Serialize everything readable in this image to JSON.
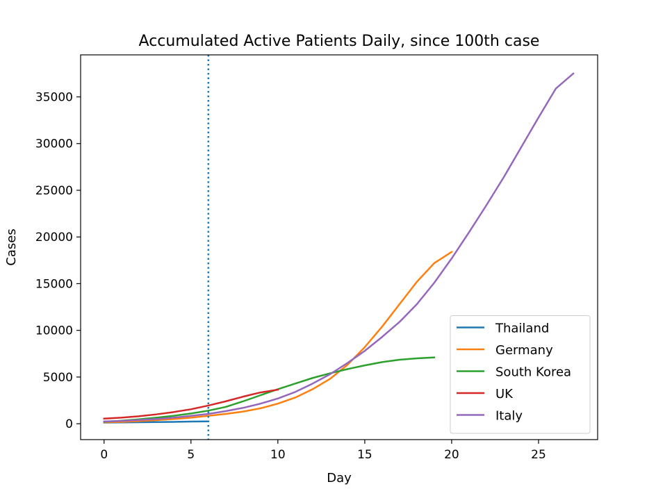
{
  "chart_data": {
    "type": "line",
    "title": "Accumulated Active Patients Daily, since 100th case",
    "xlabel": "Day",
    "ylabel": "Cases",
    "xlim": [
      -1.35,
      28.4
    ],
    "ylim": [
      -1700,
      39500
    ],
    "xticks": [
      0,
      5,
      10,
      15,
      20,
      25
    ],
    "yticks": [
      0,
      5000,
      10000,
      15000,
      20000,
      25000,
      30000,
      35000
    ],
    "vline": {
      "x": 6,
      "color": "#1f77b4",
      "style": "dotted"
    },
    "legend_position": "lower-right",
    "grid": false,
    "series": [
      {
        "name": "Thailand",
        "color": "#1f77b4",
        "x": [
          0,
          1,
          2,
          3,
          4,
          5,
          6
        ],
        "y": [
          120,
          140,
          160,
          180,
          200,
          230,
          250
        ]
      },
      {
        "name": "Germany",
        "color": "#ff7f0e",
        "x": [
          0,
          1,
          2,
          3,
          4,
          5,
          6,
          7,
          8,
          9,
          10,
          11,
          12,
          13,
          14,
          15,
          16,
          17,
          18,
          19,
          20
        ],
        "y": [
          150,
          200,
          280,
          380,
          500,
          650,
          850,
          1050,
          1300,
          1650,
          2150,
          2800,
          3700,
          4800,
          6300,
          8200,
          10400,
          12800,
          15200,
          17200,
          18400
        ]
      },
      {
        "name": "South Korea",
        "color": "#2ca02c",
        "x": [
          0,
          1,
          2,
          3,
          4,
          5,
          6,
          7,
          8,
          9,
          10,
          11,
          12,
          13,
          14,
          15,
          16,
          17,
          18,
          19
        ],
        "y": [
          200,
          330,
          480,
          650,
          850,
          1100,
          1400,
          1800,
          2400,
          3050,
          3700,
          4300,
          4900,
          5400,
          5850,
          6250,
          6600,
          6850,
          7000,
          7100
        ]
      },
      {
        "name": "UK",
        "color": "#d62728",
        "x": [
          0,
          1,
          2,
          3,
          4,
          5,
          6,
          7,
          8,
          9,
          10
        ],
        "y": [
          550,
          650,
          800,
          1000,
          1250,
          1550,
          1950,
          2400,
          2900,
          3350,
          3650
        ]
      },
      {
        "name": "Italy",
        "color": "#9467bd",
        "x": [
          0,
          1,
          2,
          3,
          4,
          5,
          6,
          7,
          8,
          9,
          10,
          11,
          12,
          13,
          14,
          15,
          16,
          17,
          18,
          19,
          20,
          21,
          22,
          23,
          24,
          25,
          26,
          27
        ],
        "y": [
          250,
          300,
          400,
          500,
          650,
          850,
          1050,
          1350,
          1700,
          2150,
          2700,
          3400,
          4300,
          5300,
          6500,
          7800,
          9300,
          10900,
          12800,
          15100,
          17700,
          20500,
          23400,
          26400,
          29600,
          32800,
          35900,
          37500
        ]
      }
    ]
  }
}
